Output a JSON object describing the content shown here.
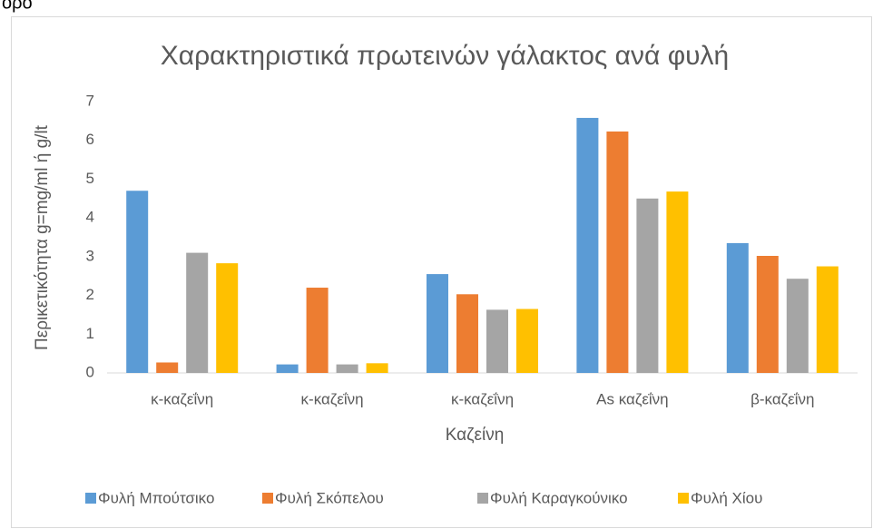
{
  "header_fragment": "όρο",
  "chart_data": {
    "type": "bar",
    "title": "Χαρακτηριστικά πρωτεινών γάλακτος ανά φυλή",
    "x_label": "Καζείνη",
    "y_label": "Περικετικότητα g=mg/ml ή g/lt",
    "categories": [
      "κ-καζεΐνη",
      "κ-καζεΐνη",
      "κ-καζεΐνη",
      "Αs καζεΐνη",
      "β-καζεΐνη"
    ],
    "series": [
      {
        "name": "Φυλή Μπούτσικο",
        "color": "#5b9bd5",
        "values": [
          4.7,
          0.22,
          2.55,
          6.58,
          3.35
        ]
      },
      {
        "name": "Φυλή Σκόπελου",
        "color": "#ed7d31",
        "values": [
          0.27,
          2.2,
          2.03,
          6.23,
          3.02
        ]
      },
      {
        "name": "Φυλή Καραγκούνικο",
        "color": "#a5a5a5",
        "values": [
          3.1,
          0.22,
          1.63,
          4.5,
          2.43
        ]
      },
      {
        "name": "Φυλή Χίου",
        "color": "#ffc000",
        "values": [
          2.83,
          0.25,
          1.65,
          4.68,
          2.75
        ]
      }
    ],
    "ylim": [
      0,
      7
    ],
    "yticks": [
      0,
      1,
      2,
      3,
      4,
      5,
      6,
      7
    ],
    "grid": false,
    "legend": "bottom"
  }
}
